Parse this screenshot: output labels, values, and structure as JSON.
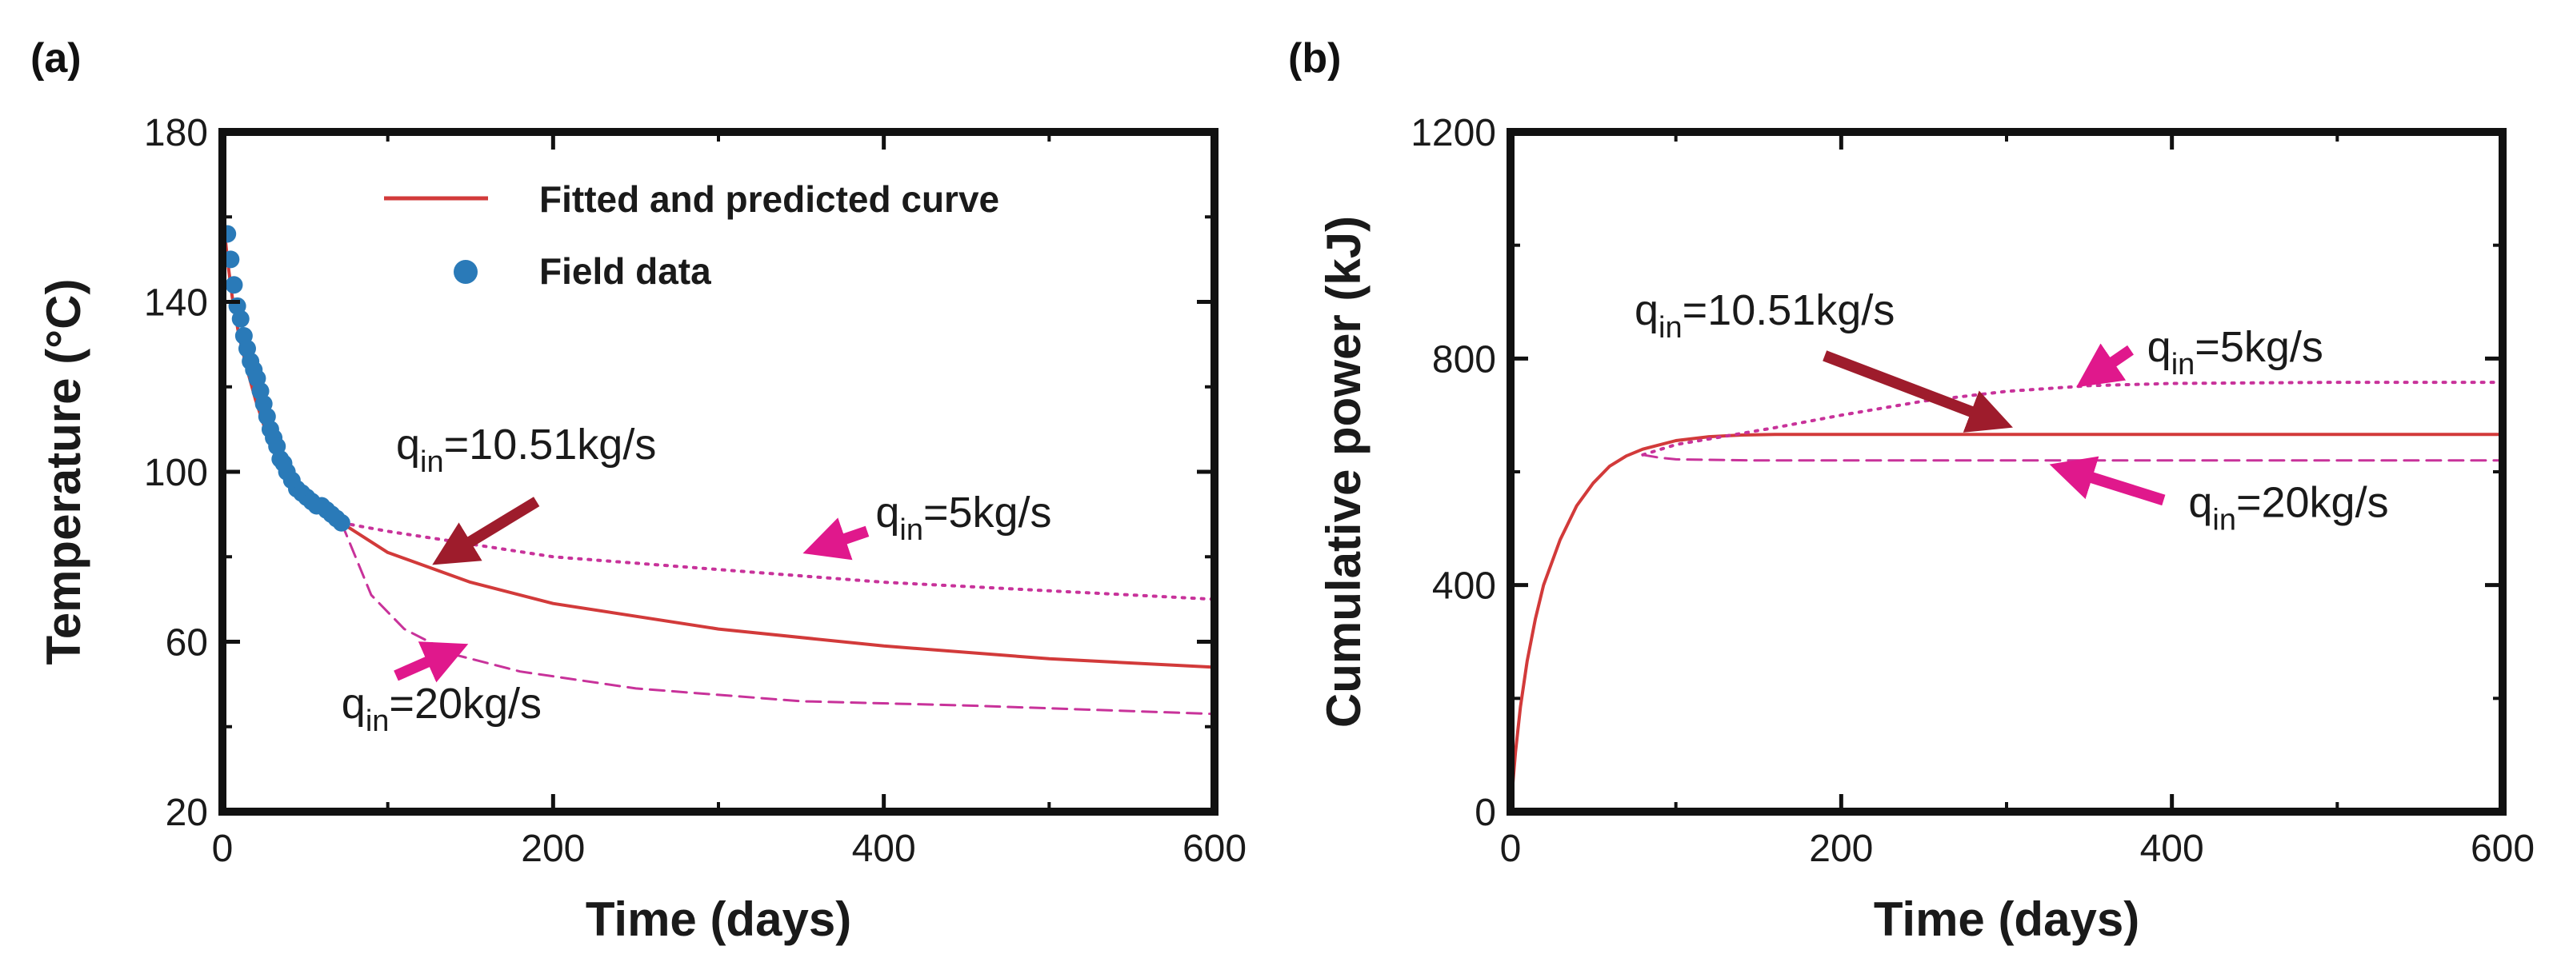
{
  "colors": {
    "fitted": "#d23a3a",
    "field": "#2a7ab8",
    "pink": "#e0188c",
    "dark_arrow": "#9e1c2c",
    "sim": "#c8329a",
    "axis": "#111111"
  },
  "chart_data": [
    {
      "panel_label": "(a)",
      "type": "line",
      "xlabel": "Time (days)",
      "ylabel": "Temperature (°C)",
      "xlim": [
        0,
        600
      ],
      "ylim": [
        20,
        180
      ],
      "xticks": [
        0,
        200,
        400,
        600
      ],
      "yticks": [
        20,
        60,
        100,
        140,
        180
      ],
      "legend": [
        {
          "label": "Fitted and predicted curve",
          "marker": "line"
        },
        {
          "label": "Field data",
          "marker": "dot"
        }
      ],
      "legend_position": "top-right",
      "series": [
        {
          "name": "Fitted and predicted curve",
          "style": "solid",
          "x": [
            0,
            3,
            6,
            10,
            15,
            20,
            25,
            30,
            35,
            40,
            50,
            60,
            72,
            100,
            150,
            200,
            300,
            400,
            500,
            600
          ],
          "y": [
            162,
            150,
            141,
            132,
            124,
            117,
            111,
            106,
            102,
            98,
            94,
            91,
            88,
            81,
            74,
            69,
            63,
            59,
            56,
            54
          ]
        },
        {
          "name": "q_in=5kg/s",
          "style": "dotted",
          "x": [
            72,
            100,
            150,
            200,
            300,
            400,
            500,
            600
          ],
          "y": [
            88,
            86,
            83,
            80,
            77,
            74,
            72,
            70
          ]
        },
        {
          "name": "q_in=20kg/s",
          "style": "dashed",
          "x": [
            72,
            90,
            110,
            140,
            180,
            250,
            350,
            450,
            600
          ],
          "y": [
            88,
            71,
            63,
            57,
            53,
            49,
            46,
            45,
            43
          ]
        },
        {
          "name": "Field data",
          "style": "scatter",
          "x": [
            3,
            5,
            7,
            9,
            11,
            13,
            15,
            17,
            19,
            21,
            23,
            25,
            27,
            29,
            31,
            33,
            35,
            37,
            39,
            42,
            45,
            48,
            51,
            54,
            57,
            60,
            63,
            66,
            69,
            72
          ],
          "y": [
            156,
            150,
            144,
            139,
            136,
            132,
            129,
            126,
            124,
            122,
            119,
            116,
            113,
            110,
            108,
            106,
            103,
            102,
            100,
            98,
            96,
            95,
            94,
            93,
            92,
            92,
            91,
            90,
            89,
            88
          ]
        }
      ],
      "annotations": [
        {
          "base": "q",
          "sub": "in",
          "rest": "=10.51kg/s",
          "tx": 105,
          "ty": 103,
          "arrow_color": "dark_arrow",
          "from": [
            190,
            93
          ],
          "to": [
            135,
            80
          ]
        },
        {
          "base": "q",
          "sub": "in",
          "rest": "=5kg/s",
          "tx": 395,
          "ty": 87,
          "arrow_color": "pink",
          "from": [
            390,
            86
          ],
          "to": [
            360,
            82
          ]
        },
        {
          "base": "q",
          "sub": "in",
          "rest": "=20kg/s",
          "tx": 72,
          "ty": 42,
          "arrow_color": "pink",
          "from": [
            105,
            52
          ],
          "to": [
            140,
            58
          ]
        }
      ]
    },
    {
      "panel_label": "(b)",
      "type": "line",
      "xlabel": "Time (days)",
      "ylabel": "Cumulative power (kJ)",
      "xlim": [
        0,
        600
      ],
      "ylim": [
        0,
        1200
      ],
      "xticks": [
        0,
        200,
        400,
        600
      ],
      "yticks": [
        0,
        400,
        800,
        1200
      ],
      "series": [
        {
          "name": "q_in=10.51kg/s",
          "style": "solid",
          "x": [
            0,
            3,
            6,
            10,
            15,
            20,
            30,
            40,
            50,
            60,
            70,
            80,
            100,
            120,
            140,
            160,
            200,
            300,
            400,
            500,
            600
          ],
          "y": [
            0,
            105,
            185,
            265,
            340,
            400,
            480,
            540,
            580,
            610,
            628,
            640,
            655,
            662,
            665,
            666,
            666,
            666,
            666,
            666,
            666
          ]
        },
        {
          "name": "q_in=5kg/s",
          "style": "dotted",
          "x": [
            80,
            100,
            130,
            160,
            200,
            250,
            300,
            350,
            400,
            500,
            600
          ],
          "y": [
            630,
            648,
            663,
            678,
            700,
            725,
            742,
            752,
            756,
            758,
            758
          ]
        },
        {
          "name": "q_in=20kg/s",
          "style": "dashed",
          "x": [
            80,
            90,
            100,
            150,
            200,
            300,
            400,
            500,
            600
          ],
          "y": [
            630,
            625,
            622,
            620,
            620,
            620,
            620,
            620,
            620
          ]
        }
      ],
      "annotations": [
        {
          "base": "q",
          "sub": "in",
          "rest": "=10.51kg/s",
          "tx": 75,
          "ty": 860,
          "arrow_color": "dark_arrow",
          "from": [
            190,
            805
          ],
          "to": [
            295,
            688
          ]
        },
        {
          "base": "q",
          "sub": "in",
          "rest": "=5kg/s",
          "tx": 385,
          "ty": 795,
          "arrow_color": "pink",
          "from": [
            375,
            815
          ],
          "to": [
            350,
            765
          ]
        },
        {
          "base": "q",
          "sub": "in",
          "rest": "=20kg/s",
          "tx": 410,
          "ty": 520,
          "arrow_color": "pink",
          "from": [
            395,
            550
          ],
          "to": [
            335,
            605
          ]
        }
      ]
    }
  ]
}
